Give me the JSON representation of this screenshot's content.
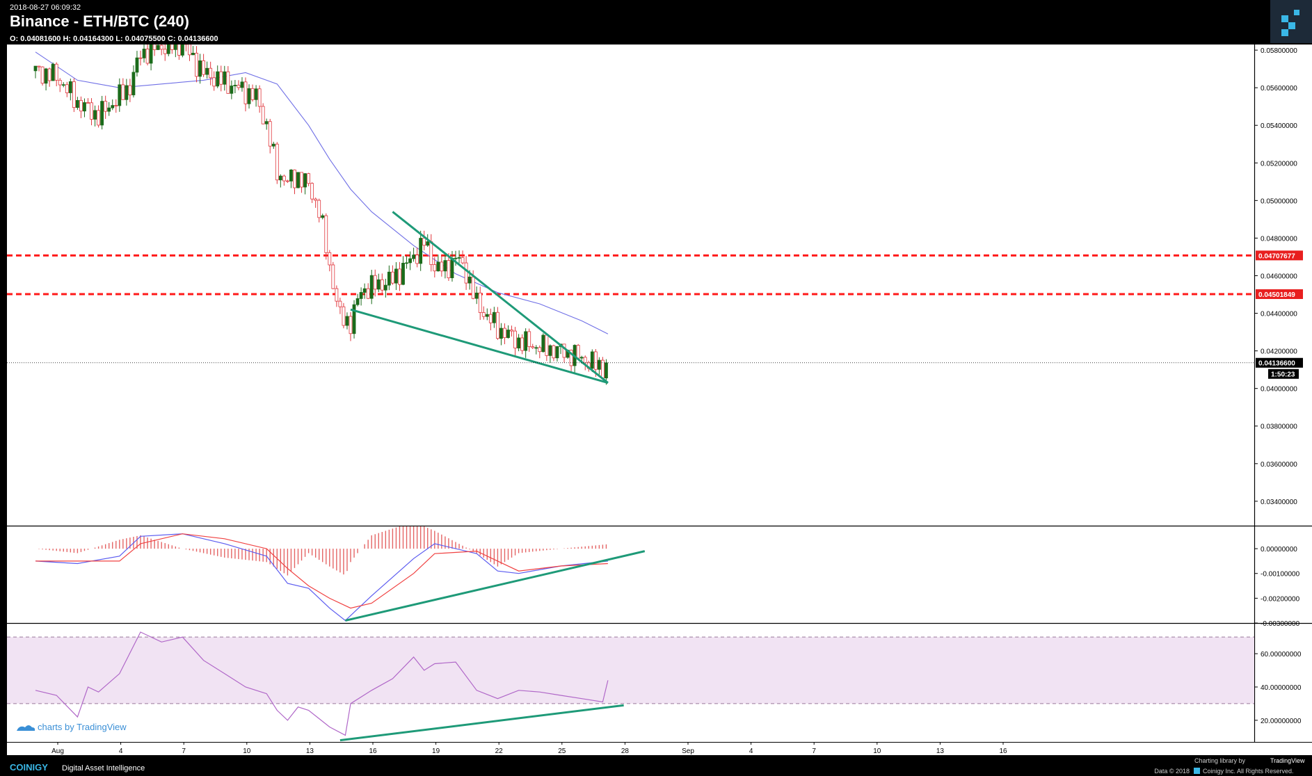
{
  "header": {
    "timestamp": "2018-08-27 06:09:32",
    "title": "Binance - ETH/BTC (240)",
    "ohlc": "O: 0.04081600 H: 0.04164300 L: 0.04075500 C: 0.04136600",
    "logo_icon": "coinigy-logo-icon"
  },
  "footer": {
    "brand": "COINIGY",
    "tagline": "Digital Asset Intelligence",
    "charting_library": "Charting library by",
    "tradingview": "TradingView",
    "copyright": "Data © 2018",
    "copyright_rest": "Coinigy Inc. All Rights Reserved."
  },
  "watermark": "charts by TradingView",
  "colors": {
    "background": "#ffffff",
    "up_candle": "#1a6b1a",
    "down_candle": "#e0353b",
    "ma_line": "#6f6fe6",
    "macd_line": "#5b5bf0",
    "signal_line": "#f04040",
    "rsi_line": "#b067c8",
    "rsi_band": "#f1e3f3",
    "trendline": "#1e9a78",
    "level_line": "#ff1a1a",
    "header_bg": "#000000"
  },
  "chart_data": [
    {
      "type": "candlestick",
      "title": "Binance - ETH/BTC (240)",
      "x_dates": [
        "Aug",
        "4",
        "7",
        "10",
        "13",
        "16",
        "19",
        "22",
        "25",
        "28",
        "Sep",
        "4",
        "7",
        "10",
        "13",
        "16"
      ],
      "y_ticks": [
        "0.05800000",
        "0.05600000",
        "0.05400000",
        "0.05200000",
        "0.05000000",
        "0.04800000",
        "0.04600000",
        "0.04400000",
        "0.04200000",
        "0.04000000",
        "0.03800000",
        "0.03600000",
        "0.03400000"
      ],
      "ylim": [
        0.0327,
        0.0583
      ],
      "current_price": 0.041366,
      "current_price_label": "0.04136600",
      "countdown": "1:50:23",
      "horizontal_levels": [
        {
          "value": 0.04707677,
          "label": "0.04707677",
          "style": "dashed-red"
        },
        {
          "value": 0.04501849,
          "label": "0.04501849",
          "style": "dashed-red"
        }
      ],
      "close_path": [
        [
          "2018-07-31",
          0.0569
        ],
        [
          "2018-08-01",
          0.0566
        ],
        [
          "2018-08-02",
          0.0552
        ],
        [
          "2018-08-03",
          0.0545
        ],
        [
          "2018-08-04",
          0.0555
        ],
        [
          "2018-08-04T12",
          0.0561
        ],
        [
          "2018-08-05",
          0.0578
        ],
        [
          "2018-08-06",
          0.0582
        ],
        [
          "2018-08-07",
          0.0583
        ],
        [
          "2018-08-08",
          0.0568
        ],
        [
          "2018-08-09",
          0.0563
        ],
        [
          "2018-08-10",
          0.0558
        ],
        [
          "2018-08-10T12",
          0.0555
        ],
        [
          "2018-08-11",
          0.054
        ],
        [
          "2018-08-11T12",
          0.0515
        ],
        [
          "2018-08-12",
          0.051
        ],
        [
          "2018-08-12T12",
          0.0513
        ],
        [
          "2018-08-13",
          0.0508
        ],
        [
          "2018-08-13T12",
          0.0495
        ],
        [
          "2018-08-14",
          0.0465
        ],
        [
          "2018-08-14T12",
          0.0438
        ],
        [
          "2018-08-15",
          0.0435
        ],
        [
          "2018-08-15T12",
          0.0452
        ],
        [
          "2018-08-16",
          0.0454
        ],
        [
          "2018-08-17",
          0.0458
        ],
        [
          "2018-08-18",
          0.047
        ],
        [
          "2018-08-18T12",
          0.0478
        ],
        [
          "2018-08-19",
          0.0465
        ],
        [
          "2018-08-19T12",
          0.0463
        ],
        [
          "2018-08-20",
          0.047
        ],
        [
          "2018-08-20T12",
          0.0462
        ],
        [
          "2018-08-21",
          0.0445
        ],
        [
          "2018-08-22",
          0.0432
        ],
        [
          "2018-08-23",
          0.0425
        ],
        [
          "2018-08-24",
          0.0422
        ],
        [
          "2018-08-25",
          0.042
        ],
        [
          "2018-08-26",
          0.0416
        ],
        [
          "2018-08-27",
          0.0411
        ],
        [
          "2018-08-27T06",
          0.041366
        ]
      ],
      "moving_average": [
        [
          "2018-07-31",
          0.0579
        ],
        [
          "2018-08-02",
          0.0564
        ],
        [
          "2018-08-04",
          0.056
        ],
        [
          "2018-08-06",
          0.0562
        ],
        [
          "2018-08-08",
          0.0564
        ],
        [
          "2018-08-10",
          0.0568
        ],
        [
          "2018-08-11T12",
          0.0562
        ],
        [
          "2018-08-13",
          0.054
        ],
        [
          "2018-08-14",
          0.0522
        ],
        [
          "2018-08-15",
          0.0506
        ],
        [
          "2018-08-16",
          0.0494
        ],
        [
          "2018-08-18",
          0.0476
        ],
        [
          "2018-08-20",
          0.0461
        ],
        [
          "2018-08-22",
          0.0451
        ],
        [
          "2018-08-24",
          0.0445
        ],
        [
          "2018-08-26",
          0.0436
        ],
        [
          "2018-08-27T06",
          0.0429
        ]
      ],
      "pattern_lines": [
        {
          "from": [
            "2018-08-17",
            0.0494
          ],
          "to": [
            "2018-08-27T06",
            0.0403
          ]
        },
        {
          "from": [
            "2018-08-15",
            0.0442
          ],
          "to": [
            "2018-08-27T06",
            0.0403
          ]
        }
      ]
    },
    {
      "type": "line",
      "title": "MACD",
      "y_ticks": [
        "0.00000000",
        "-0.00100000",
        "-0.00200000",
        "-0.00300000"
      ],
      "ylim": [
        -0.003,
        0.0009
      ],
      "macd": [
        [
          "2018-07-31",
          -0.0005
        ],
        [
          "2018-08-02",
          -0.0006
        ],
        [
          "2018-08-04",
          -0.0003
        ],
        [
          "2018-08-05",
          0.0005
        ],
        [
          "2018-08-07",
          0.0006
        ],
        [
          "2018-08-09",
          0.0002
        ],
        [
          "2018-08-11",
          -0.0003
        ],
        [
          "2018-08-12",
          -0.0014
        ],
        [
          "2018-08-13",
          -0.0016
        ],
        [
          "2018-08-14",
          -0.0024
        ],
        [
          "2018-08-14T18",
          -0.0029
        ],
        [
          "2018-08-16",
          -0.0019
        ],
        [
          "2018-08-18",
          -0.0004
        ],
        [
          "2018-08-19",
          0.0002
        ],
        [
          "2018-08-21",
          -0.0002
        ],
        [
          "2018-08-22",
          -0.0009
        ],
        [
          "2018-08-23",
          -0.001
        ],
        [
          "2018-08-25",
          -0.0007
        ],
        [
          "2018-08-27T06",
          -0.0005
        ]
      ],
      "signal": [
        [
          "2018-07-31",
          -0.0005
        ],
        [
          "2018-08-02",
          -0.0005
        ],
        [
          "2018-08-04",
          -0.0005
        ],
        [
          "2018-08-05",
          0.0002
        ],
        [
          "2018-08-07",
          0.0006
        ],
        [
          "2018-08-09",
          0.0004
        ],
        [
          "2018-08-11",
          0.0
        ],
        [
          "2018-08-12",
          -0.0008
        ],
        [
          "2018-08-13",
          -0.0015
        ],
        [
          "2018-08-14",
          -0.002
        ],
        [
          "2018-08-15",
          -0.0024
        ],
        [
          "2018-08-16",
          -0.0022
        ],
        [
          "2018-08-18",
          -0.001
        ],
        [
          "2018-08-19",
          -0.0002
        ],
        [
          "2018-08-21",
          -0.0001
        ],
        [
          "2018-08-22",
          -0.0005
        ],
        [
          "2018-08-23",
          -0.0009
        ],
        [
          "2018-08-25",
          -0.0007
        ],
        [
          "2018-08-27T06",
          -0.0006
        ]
      ],
      "divergence_line": {
        "from": [
          "2018-08-14T18",
          -0.0029
        ],
        "to": [
          "2018-08-29",
          -0.0001
        ]
      }
    },
    {
      "type": "line",
      "title": "RSI",
      "y_ticks": [
        "60.00000000",
        "40.00000000",
        "20.00000000"
      ],
      "ylim": [
        7,
        78
      ],
      "band": [
        30,
        70
      ],
      "rsi": [
        [
          "2018-07-31",
          38
        ],
        [
          "2018-08-01",
          35
        ],
        [
          "2018-08-02",
          22
        ],
        [
          "2018-08-02T12",
          40
        ],
        [
          "2018-08-03",
          37
        ],
        [
          "2018-08-04",
          48
        ],
        [
          "2018-08-05",
          73
        ],
        [
          "2018-08-06",
          67
        ],
        [
          "2018-08-07",
          70
        ],
        [
          "2018-08-08",
          56
        ],
        [
          "2018-08-09",
          48
        ],
        [
          "2018-08-10",
          40
        ],
        [
          "2018-08-11",
          36
        ],
        [
          "2018-08-11T12",
          26
        ],
        [
          "2018-08-12",
          20
        ],
        [
          "2018-08-12T12",
          28
        ],
        [
          "2018-08-13",
          26
        ],
        [
          "2018-08-13T12",
          21
        ],
        [
          "2018-08-14",
          16
        ],
        [
          "2018-08-14T18",
          11
        ],
        [
          "2018-08-15",
          30
        ],
        [
          "2018-08-16",
          38
        ],
        [
          "2018-08-17",
          45
        ],
        [
          "2018-08-18",
          58
        ],
        [
          "2018-08-18T12",
          50
        ],
        [
          "2018-08-19",
          54
        ],
        [
          "2018-08-20",
          55
        ],
        [
          "2018-08-21",
          38
        ],
        [
          "2018-08-22",
          33
        ],
        [
          "2018-08-23",
          38
        ],
        [
          "2018-08-24",
          37
        ],
        [
          "2018-08-25",
          35
        ],
        [
          "2018-08-26",
          33
        ],
        [
          "2018-08-27",
          31
        ],
        [
          "2018-08-27T06",
          44
        ]
      ],
      "divergence_line": {
        "from": [
          "2018-08-14T12",
          8
        ],
        "to": [
          "2018-08-28",
          29
        ]
      }
    }
  ]
}
